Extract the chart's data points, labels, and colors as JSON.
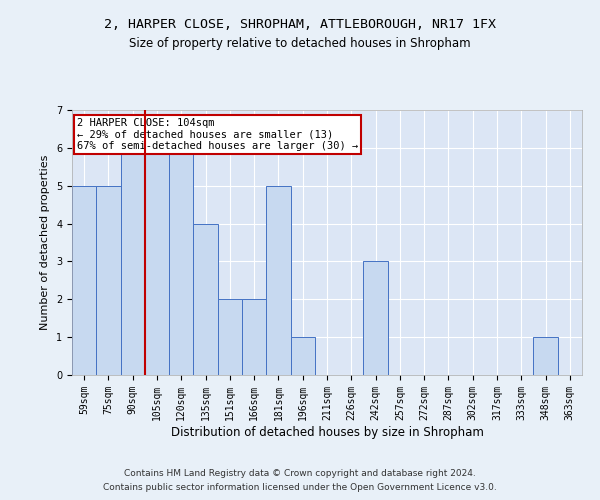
{
  "title1": "2, HARPER CLOSE, SHROPHAM, ATTLEBOROUGH, NR17 1FX",
  "title2": "Size of property relative to detached houses in Shropham",
  "xlabel": "Distribution of detached houses by size in Shropham",
  "ylabel": "Number of detached properties",
  "categories": [
    "59sqm",
    "75sqm",
    "90sqm",
    "105sqm",
    "120sqm",
    "135sqm",
    "151sqm",
    "166sqm",
    "181sqm",
    "196sqm",
    "211sqm",
    "226sqm",
    "242sqm",
    "257sqm",
    "272sqm",
    "287sqm",
    "302sqm",
    "317sqm",
    "333sqm",
    "348sqm",
    "363sqm"
  ],
  "values": [
    5,
    5,
    6,
    6,
    6,
    4,
    2,
    2,
    5,
    1,
    0,
    0,
    3,
    0,
    0,
    0,
    0,
    0,
    0,
    1,
    0
  ],
  "bar_color": "#c7d9f0",
  "bar_edge_color": "#4472c4",
  "vline_x_idx": 2.5,
  "vline_color": "#c00000",
  "annotation_text": "2 HARPER CLOSE: 104sqm\n← 29% of detached houses are smaller (13)\n67% of semi-detached houses are larger (30) →",
  "annotation_box_color": "#ffffff",
  "annotation_box_edge": "#c00000",
  "ylim": [
    0,
    7
  ],
  "yticks": [
    0,
    1,
    2,
    3,
    4,
    5,
    6,
    7
  ],
  "footer1": "Contains HM Land Registry data © Crown copyright and database right 2024.",
  "footer2": "Contains public sector information licensed under the Open Government Licence v3.0.",
  "bg_color": "#e8f0f8",
  "plot_bg": "#dce6f5",
  "grid_color": "#ffffff",
  "title1_fontsize": 9.5,
  "title2_fontsize": 8.5,
  "xlabel_fontsize": 8.5,
  "ylabel_fontsize": 8,
  "tick_fontsize": 7,
  "annot_fontsize": 7.5,
  "footer_fontsize": 6.5
}
